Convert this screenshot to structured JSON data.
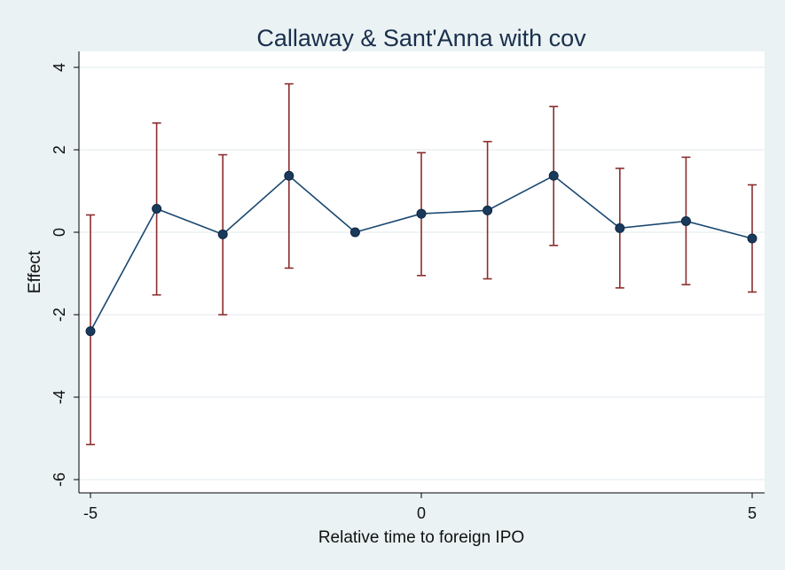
{
  "chart_data": {
    "type": "line",
    "title": "Callaway & Sant'Anna with cov",
    "xlabel": "Relative time to foreign IPO",
    "ylabel": "Effect",
    "xlim": [
      -5,
      5
    ],
    "ylim": [
      -6,
      4
    ],
    "x_ticks": [
      -5,
      0,
      5
    ],
    "y_ticks": [
      -6,
      -4,
      -2,
      0,
      2,
      4
    ],
    "grid": true,
    "series": [
      {
        "name": "Effect",
        "x": [
          -5,
          -4,
          -3,
          -2,
          -1,
          0,
          1,
          2,
          3,
          4,
          5
        ],
        "y": [
          -2.4,
          0.57,
          -0.05,
          1.37,
          0.0,
          0.45,
          0.53,
          1.37,
          0.1,
          0.27,
          -0.15
        ],
        "ci_lower": [
          -5.15,
          -1.52,
          -2.0,
          -0.87,
          0.0,
          -1.05,
          -1.13,
          -0.32,
          -1.35,
          -1.27,
          -1.45
        ],
        "ci_upper": [
          0.42,
          2.65,
          1.88,
          3.6,
          0.0,
          1.93,
          2.2,
          3.05,
          1.55,
          1.82,
          1.15
        ]
      }
    ]
  },
  "colors": {
    "background": "#eaf2f3",
    "plot_area": "#ffffff",
    "line": "#1a476f",
    "marker": "#1a3a5c",
    "ci": "#8b2e2e"
  }
}
